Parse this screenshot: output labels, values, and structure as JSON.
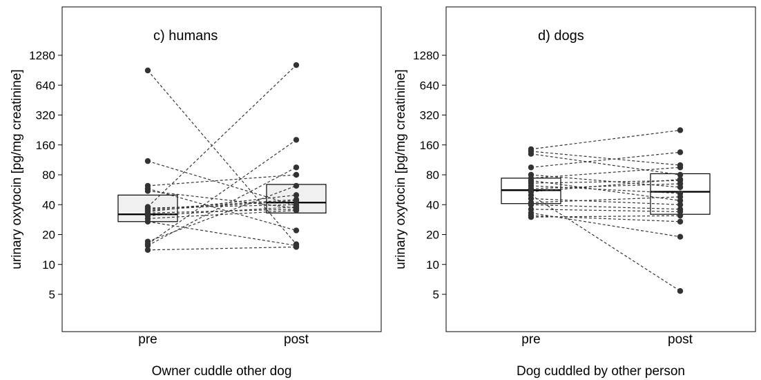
{
  "chart_data": [
    {
      "type": "box",
      "panel_label": "c) humans",
      "xlabel": "Owner cuddle other dog",
      "ylabel": "urinary oxytocin [pg/mg creatinine]",
      "categories": [
        "pre",
        "post"
      ],
      "yscale": "log2",
      "ylim": [
        2.2,
        2600
      ],
      "yticks": [
        5,
        10,
        20,
        40,
        80,
        160,
        320,
        640,
        1280
      ],
      "ytick_labels": [
        "5",
        "10",
        "20",
        "40",
        "80",
        "160",
        "320",
        "640",
        "1280"
      ],
      "box_fill": "#f0f0f0",
      "boxes": [
        {
          "category": "pre",
          "q1": 27,
          "median": 32,
          "q3": 50
        },
        {
          "category": "post",
          "q1": 33,
          "median": 42,
          "q3": 64
        }
      ],
      "pairs": [
        {
          "pre": 900,
          "post": 16
        },
        {
          "pre": 110,
          "post": 39
        },
        {
          "pre": 62,
          "post": 80
        },
        {
          "pre": 58,
          "post": 22
        },
        {
          "pre": 55,
          "post": 37
        },
        {
          "pre": 38,
          "post": 1020
        },
        {
          "pre": 37,
          "post": 40
        },
        {
          "pre": 36,
          "post": 45
        },
        {
          "pre": 35,
          "post": 44
        },
        {
          "pre": 34,
          "post": 50
        },
        {
          "pre": 33,
          "post": 36
        },
        {
          "pre": 31,
          "post": 38
        },
        {
          "pre": 29,
          "post": 35
        },
        {
          "pre": 27,
          "post": 15.5
        },
        {
          "pre": 17,
          "post": 62
        },
        {
          "pre": 16,
          "post": 180
        },
        {
          "pre": 15.5,
          "post": 95
        },
        {
          "pre": 14,
          "post": 15
        }
      ]
    },
    {
      "type": "box",
      "panel_label": "d) dogs",
      "xlabel": "Dog cuddled by other person",
      "ylabel": "urinary oxytocin [pg/mg creatinine]",
      "categories": [
        "pre",
        "post"
      ],
      "yscale": "log2",
      "ylim": [
        2.2,
        2600
      ],
      "yticks": [
        5,
        10,
        20,
        40,
        80,
        160,
        320,
        640,
        1280
      ],
      "ytick_labels": [
        "5",
        "10",
        "20",
        "40",
        "80",
        "160",
        "320",
        "640",
        "1280"
      ],
      "box_fill": "#ffffff",
      "boxes": [
        {
          "category": "pre",
          "q1": 41,
          "median": 56,
          "q3": 74
        },
        {
          "category": "post",
          "q1": 32,
          "median": 54,
          "q3": 82
        }
      ],
      "pairs": [
        {
          "pre": 145,
          "post": 225
        },
        {
          "pre": 138,
          "post": 100
        },
        {
          "pre": 130,
          "post": 80
        },
        {
          "pre": 95,
          "post": 135
        },
        {
          "pre": 80,
          "post": 60
        },
        {
          "pre": 74,
          "post": 95
        },
        {
          "pre": 70,
          "post": 44
        },
        {
          "pre": 66,
          "post": 70
        },
        {
          "pre": 62,
          "post": 52
        },
        {
          "pre": 58,
          "post": 65
        },
        {
          "pre": 54,
          "post": 72
        },
        {
          "pre": 50,
          "post": 5.4
        },
        {
          "pre": 46,
          "post": 40
        },
        {
          "pre": 42,
          "post": 48
        },
        {
          "pre": 40,
          "post": 36
        },
        {
          "pre": 36,
          "post": 34
        },
        {
          "pre": 33,
          "post": 19
        },
        {
          "pre": 31,
          "post": 27
        },
        {
          "pre": 30,
          "post": 31
        }
      ]
    }
  ]
}
